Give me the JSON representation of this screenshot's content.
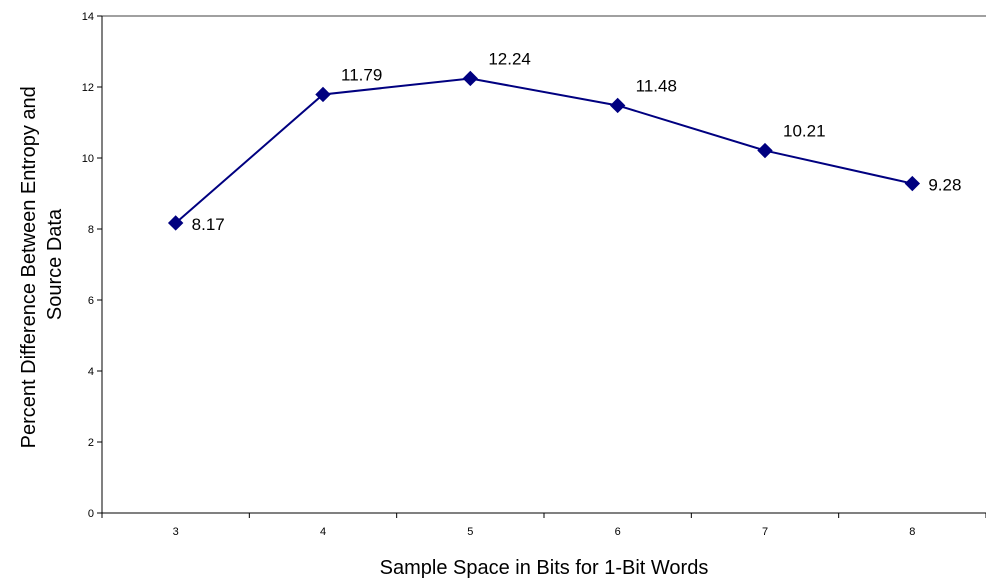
{
  "chart_data": {
    "type": "line",
    "title": "",
    "xlabel": "Sample Space in Bits for 1-Bit Words",
    "ylabel_lines": [
      "Percent Difference Between Entropy and",
      "Source Data"
    ],
    "categories": [
      "3",
      "4",
      "5",
      "6",
      "7",
      "8"
    ],
    "series": [
      {
        "values": [
          8.17,
          11.79,
          12.24,
          11.48,
          10.21,
          9.28
        ],
        "data_labels": [
          "8.17",
          "11.79",
          "12.24",
          "11.48",
          "10.21",
          "9.28"
        ]
      }
    ],
    "ylim": [
      0,
      14
    ],
    "yticks": [
      {
        "value": 0,
        "label": "0"
      },
      {
        "value": 2,
        "label": "2"
      },
      {
        "value": 4,
        "label": "4"
      },
      {
        "value": 6,
        "label": "6"
      },
      {
        "value": 8,
        "label": "8"
      },
      {
        "value": 10,
        "label": "10"
      },
      {
        "value": 12,
        "label": "12"
      },
      {
        "value": 14,
        "label": "14"
      }
    ],
    "grid": false,
    "legend": "none",
    "marker": "diamond",
    "line_color": "#000080",
    "marker_color": "#000080"
  }
}
